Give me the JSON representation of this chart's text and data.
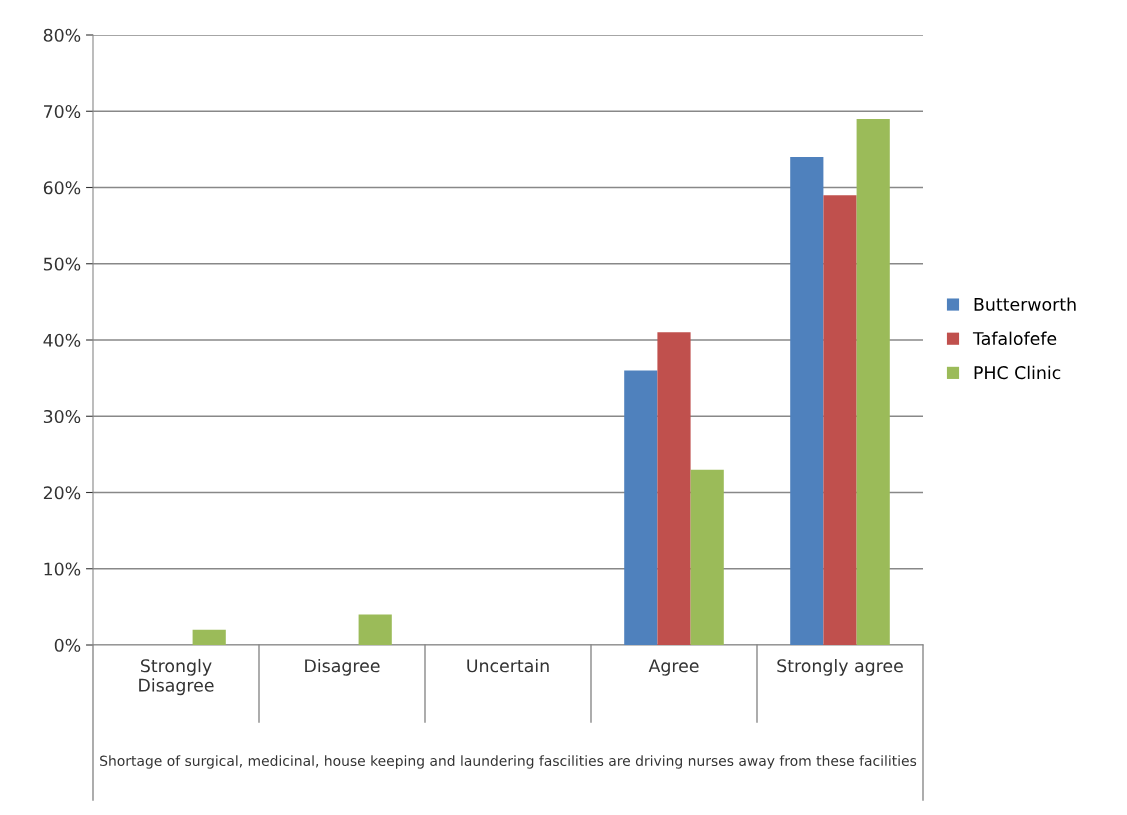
{
  "chart_data": {
    "type": "bar",
    "xlabel": "Shortage of surgical, medicinal, house keeping and laundering fascilities are driving nurses away from these facilities",
    "categories": [
      "Strongly\nDisagree",
      "Disagree",
      "Uncertain",
      "Agree",
      "Strongly agree"
    ],
    "series": [
      {
        "name": "Butterworth",
        "color": "#4f81bd",
        "values": [
          0,
          0,
          0,
          36,
          64
        ]
      },
      {
        "name": "Tafalofefe",
        "color": "#c0504d",
        "values": [
          0,
          0,
          0,
          41,
          59
        ]
      },
      {
        "name": "PHC Clinic",
        "color": "#9bbb59",
        "values": [
          2,
          4,
          0,
          23,
          69
        ]
      }
    ],
    "ylim": [
      0,
      80
    ],
    "yticks": [
      {
        "value": 0,
        "label": "0%"
      },
      {
        "value": 10,
        "label": "10%"
      },
      {
        "value": 20,
        "label": "20%"
      },
      {
        "value": 30,
        "label": "30%"
      },
      {
        "value": 40,
        "label": "40%"
      },
      {
        "value": 50,
        "label": "50%"
      },
      {
        "value": 60,
        "label": "60%"
      },
      {
        "value": 70,
        "label": "70%"
      },
      {
        "value": 80,
        "label": "80%"
      }
    ],
    "grid": "y",
    "legend": "right"
  }
}
